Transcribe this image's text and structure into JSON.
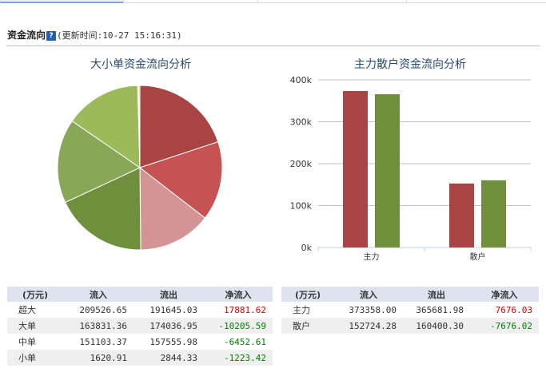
{
  "section": {
    "title": "资金流向",
    "update_time": "(更新时间:10-27 15:16:31)"
  },
  "pie": {
    "title": "大小单资金流向分析"
  },
  "bar": {
    "title": "主力散户资金流向分析"
  },
  "colors": {
    "inflow": "#a94444",
    "outflow": "#6f8f3d",
    "positive": "#e00000",
    "negative": "#008000",
    "table_header_bg": "#dde4ef"
  },
  "chart_data": [
    {
      "type": "pie",
      "title": "大小单资金流向分析",
      "slices": [
        {
          "value": 209526.65,
          "color": "#a94444"
        },
        {
          "value": 163831.36,
          "color": "#c65353"
        },
        {
          "value": 151103.37,
          "color": "#d49494"
        },
        {
          "value": 191645.03,
          "color": "#6f8f3d"
        },
        {
          "value": 174036.95,
          "color": "#88a857"
        },
        {
          "value": 157555.98,
          "color": "#9dba5a"
        },
        {
          "value": 1620.91,
          "color": "#f3d9d9"
        },
        {
          "value": 2844.33,
          "color": "#c8d8a0"
        }
      ]
    },
    {
      "type": "bar",
      "title": "主力散户资金流向分析",
      "categories": [
        "主力",
        "散户"
      ],
      "series": [
        {
          "values": [
            373358.0,
            152724.28
          ],
          "color": "#a94444"
        },
        {
          "values": [
            365681.98,
            160400.3
          ],
          "color": "#6f8f3d"
        }
      ],
      "ylim": [
        0,
        400000
      ],
      "yticks": [
        "0k",
        "100k",
        "200k",
        "300k",
        "400k"
      ],
      "grid": true
    }
  ],
  "table_size": {
    "headers": [
      "(万元)",
      "流入",
      "流出",
      "净流入"
    ],
    "rows": [
      {
        "name": "超大",
        "in": "209526.65",
        "out": "191645.03",
        "net": "17881.62",
        "sign": "pos"
      },
      {
        "name": "大单",
        "in": "163831.36",
        "out": "174036.95",
        "net": "-10205.59",
        "sign": "neg"
      },
      {
        "name": "中单",
        "in": "151103.37",
        "out": "157555.98",
        "net": "-6452.61",
        "sign": "neg"
      },
      {
        "name": "小单",
        "in": "1620.91",
        "out": "2844.33",
        "net": "-1223.42",
        "sign": "neg"
      }
    ]
  },
  "table_main": {
    "headers": [
      "(万元)",
      "流入",
      "流出",
      "净流入"
    ],
    "rows": [
      {
        "name": "主力",
        "in": "373358.00",
        "out": "365681.98",
        "net": "7676.03",
        "sign": "pos"
      },
      {
        "name": "散户",
        "in": "152724.28",
        "out": "160400.30",
        "net": "-7676.02",
        "sign": "neg"
      }
    ]
  }
}
